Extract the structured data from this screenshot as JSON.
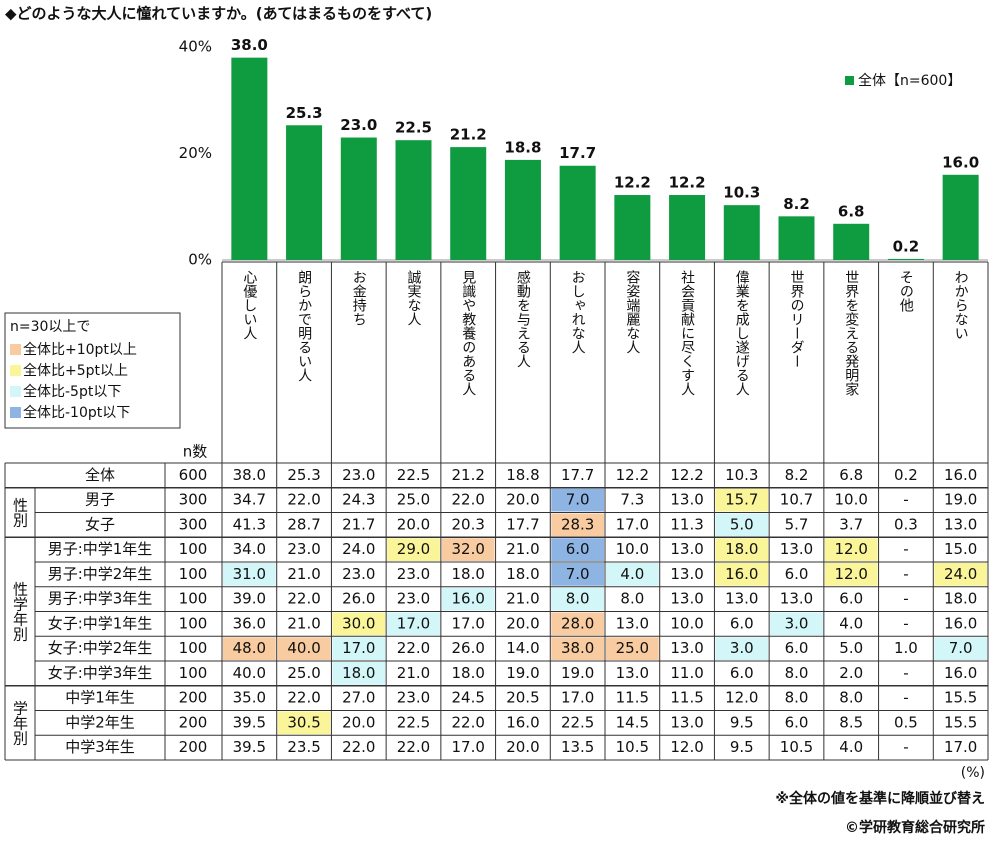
{
  "title": "◆どのような大人に憧れていますか。(あてはまるものをすべて)",
  "chart_data": {
    "type": "bar",
    "categories": [
      "心優しい人",
      "朗らかで明るい人",
      "お金持ち",
      "誠実な人",
      "見識や教養のある人",
      "感動を与える人",
      "おしゃれな人",
      "容姿端麗な人",
      "社会貢献に尽くす人",
      "偉業を成し遂げる人",
      "世界のリーダー",
      "世界を変える発明家",
      "その他",
      "わからない"
    ],
    "series": [
      {
        "name": "全体【n=600】",
        "color": "#0f9b3f",
        "values": [
          38.0,
          25.3,
          23.0,
          22.5,
          21.2,
          18.8,
          17.7,
          12.2,
          12.2,
          10.3,
          8.2,
          6.8,
          0.2,
          16.0
        ],
        "value_labels": [
          "38.0",
          "25.3",
          "23.0",
          "22.5",
          "21.2",
          "18.8",
          "17.7",
          "12.2",
          "12.2",
          "10.3",
          "8.2",
          "6.8",
          "0.2",
          "16.0"
        ]
      }
    ],
    "ylim": [
      0,
      40
    ],
    "yticks": [
      {
        "value": 0,
        "label": "0%"
      },
      {
        "value": 20,
        "label": "20%"
      },
      {
        "value": 40,
        "label": "40%"
      }
    ],
    "legend": "upper right"
  },
  "highlight_legend": {
    "title": "n=30以上で",
    "items": [
      {
        "label": "全体比+10pt以上",
        "color": "#f8cba0"
      },
      {
        "label": "全体比+5pt以上",
        "color": "#fbf59a"
      },
      {
        "label": "全体比-5pt以下",
        "color": "#d3f6f8"
      },
      {
        "label": "全体比-10pt以下",
        "color": "#8eb4e3"
      }
    ]
  },
  "table": {
    "n_header": "n数",
    "total": {
      "label": "全体",
      "n": "600",
      "values": [
        "38.0",
        "25.3",
        "23.0",
        "22.5",
        "21.2",
        "18.8",
        "17.7",
        "12.2",
        "12.2",
        "10.3",
        "8.2",
        "6.8",
        "0.2",
        "16.0"
      ]
    },
    "groups": [
      {
        "label": "性別",
        "rows": [
          {
            "label": "男子",
            "n": "300",
            "values": [
              "34.7",
              "22.0",
              "24.3",
              "25.0",
              "22.0",
              "20.0",
              "7.0",
              "7.3",
              "13.0",
              "15.7",
              "10.7",
              "10.0",
              "-",
              "19.0"
            ],
            "highlights": [
              null,
              null,
              null,
              null,
              null,
              null,
              3,
              null,
              null,
              1,
              null,
              null,
              null,
              null
            ]
          },
          {
            "label": "女子",
            "n": "300",
            "values": [
              "41.3",
              "28.7",
              "21.7",
              "20.0",
              "20.3",
              "17.7",
              "28.3",
              "17.0",
              "11.3",
              "5.0",
              "5.7",
              "3.7",
              "0.3",
              "13.0"
            ],
            "highlights": [
              null,
              null,
              null,
              null,
              null,
              null,
              0,
              null,
              null,
              2,
              null,
              null,
              null,
              null
            ]
          }
        ]
      },
      {
        "label": "性学年別",
        "rows": [
          {
            "label": "男子:中学1年生",
            "n": "100",
            "values": [
              "34.0",
              "23.0",
              "24.0",
              "29.0",
              "32.0",
              "21.0",
              "6.0",
              "10.0",
              "13.0",
              "18.0",
              "13.0",
              "12.0",
              "-",
              "15.0"
            ],
            "highlights": [
              null,
              null,
              null,
              1,
              0,
              null,
              3,
              null,
              null,
              1,
              null,
              1,
              null,
              null
            ]
          },
          {
            "label": "男子:中学2年生",
            "n": "100",
            "values": [
              "31.0",
              "21.0",
              "23.0",
              "23.0",
              "18.0",
              "18.0",
              "7.0",
              "4.0",
              "13.0",
              "16.0",
              "6.0",
              "12.0",
              "-",
              "24.0"
            ],
            "highlights": [
              2,
              null,
              null,
              null,
              null,
              null,
              3,
              2,
              null,
              1,
              null,
              1,
              null,
              1
            ]
          },
          {
            "label": "男子:中学3年生",
            "n": "100",
            "values": [
              "39.0",
              "22.0",
              "26.0",
              "23.0",
              "16.0",
              "21.0",
              "8.0",
              "8.0",
              "13.0",
              "13.0",
              "13.0",
              "6.0",
              "-",
              "18.0"
            ],
            "highlights": [
              null,
              null,
              null,
              null,
              2,
              null,
              2,
              null,
              null,
              null,
              null,
              null,
              null,
              null
            ]
          },
          {
            "label": "女子:中学1年生",
            "n": "100",
            "values": [
              "36.0",
              "21.0",
              "30.0",
              "17.0",
              "17.0",
              "20.0",
              "28.0",
              "13.0",
              "10.0",
              "6.0",
              "3.0",
              "4.0",
              "-",
              "16.0"
            ],
            "highlights": [
              null,
              null,
              1,
              2,
              null,
              null,
              0,
              null,
              null,
              null,
              2,
              null,
              null,
              null
            ]
          },
          {
            "label": "女子:中学2年生",
            "n": "100",
            "values": [
              "48.0",
              "40.0",
              "17.0",
              "22.0",
              "26.0",
              "14.0",
              "38.0",
              "25.0",
              "13.0",
              "3.0",
              "6.0",
              "5.0",
              "1.0",
              "7.0"
            ],
            "highlights": [
              0,
              0,
              2,
              null,
              null,
              null,
              0,
              0,
              null,
              2,
              null,
              null,
              null,
              2
            ]
          },
          {
            "label": "女子:中学3年生",
            "n": "100",
            "values": [
              "40.0",
              "25.0",
              "18.0",
              "21.0",
              "18.0",
              "19.0",
              "19.0",
              "13.0",
              "11.0",
              "6.0",
              "8.0",
              "2.0",
              "-",
              "16.0"
            ],
            "highlights": [
              null,
              null,
              2,
              null,
              null,
              null,
              null,
              null,
              null,
              null,
              null,
              null,
              null,
              null
            ]
          }
        ]
      },
      {
        "label": "学年別",
        "rows": [
          {
            "label": "中学1年生",
            "n": "200",
            "values": [
              "35.0",
              "22.0",
              "27.0",
              "23.0",
              "24.5",
              "20.5",
              "17.0",
              "11.5",
              "11.5",
              "12.0",
              "8.0",
              "8.0",
              "-",
              "15.5"
            ],
            "highlights": [
              null,
              null,
              null,
              null,
              null,
              null,
              null,
              null,
              null,
              null,
              null,
              null,
              null,
              null
            ]
          },
          {
            "label": "中学2年生",
            "n": "200",
            "values": [
              "39.5",
              "30.5",
              "20.0",
              "22.5",
              "22.0",
              "16.0",
              "22.5",
              "14.5",
              "13.0",
              "9.5",
              "6.0",
              "8.5",
              "0.5",
              "15.5"
            ],
            "highlights": [
              null,
              1,
              null,
              null,
              null,
              null,
              null,
              null,
              null,
              null,
              null,
              null,
              null,
              null
            ]
          },
          {
            "label": "中学3年生",
            "n": "200",
            "values": [
              "39.5",
              "23.5",
              "22.0",
              "22.0",
              "17.0",
              "20.0",
              "13.5",
              "10.5",
              "12.0",
              "9.5",
              "10.5",
              "4.0",
              "-",
              "17.0"
            ],
            "highlights": [
              null,
              null,
              null,
              null,
              null,
              null,
              null,
              null,
              null,
              null,
              null,
              null,
              null,
              null
            ]
          }
        ]
      }
    ]
  },
  "footer": {
    "unit": "(%)",
    "note": "※全体の値を基準に降順並び替え",
    "credit": "©学研教育総合研究所"
  }
}
